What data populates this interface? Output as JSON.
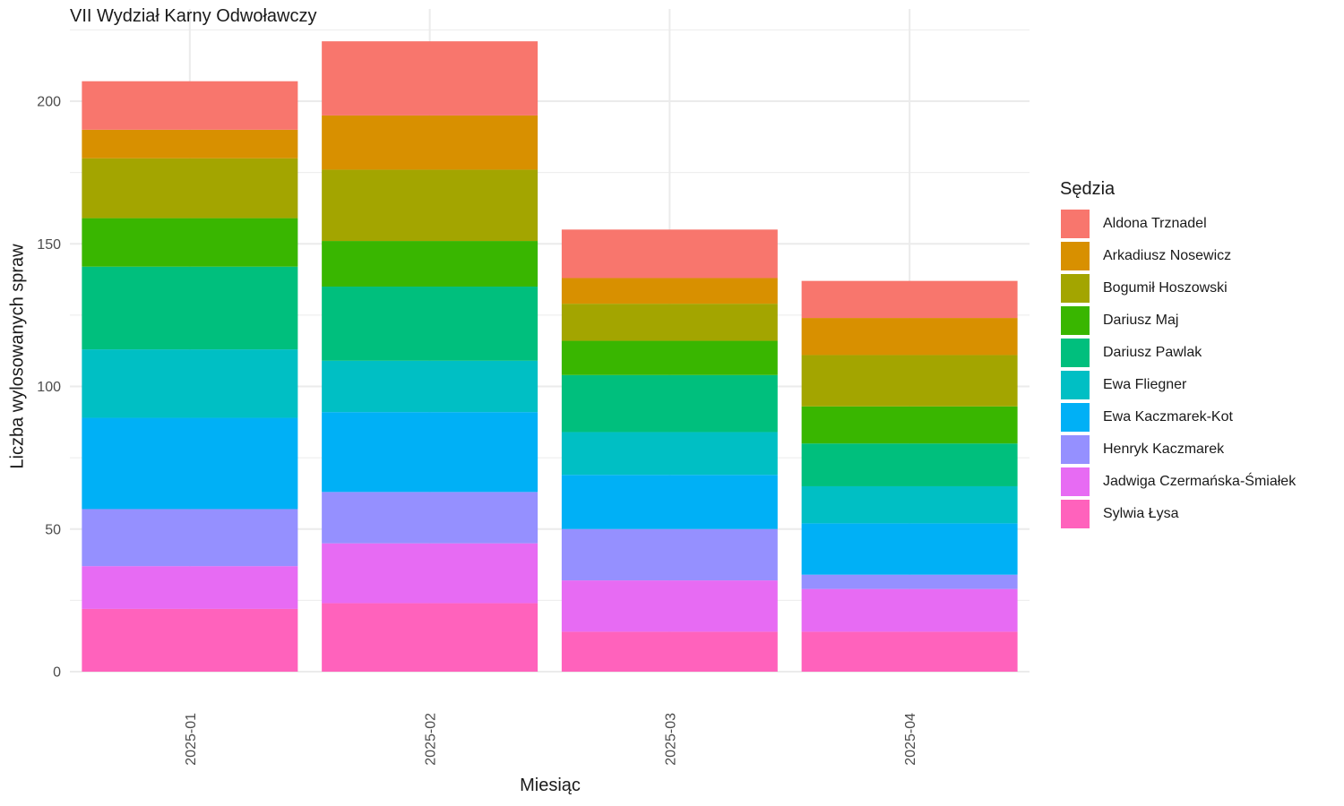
{
  "chart_data": {
    "type": "bar",
    "stacked": true,
    "title": "VII Wydział Karny Odwoławczy",
    "xlabel": "Miesiąc",
    "ylabel": "Liczba wylosowanych spraw",
    "legend_title": "Sędzia",
    "legend_position": "right",
    "grid": true,
    "ylim": [
      0,
      221
    ],
    "yticks": [
      0,
      50,
      100,
      150,
      200
    ],
    "categories": [
      "2025-01",
      "2025-02",
      "2025-03",
      "2025-04"
    ],
    "series": [
      {
        "name": "Aldona Trznadel",
        "color": "#F8766D",
        "values": [
          17,
          26,
          17,
          13
        ]
      },
      {
        "name": "Arkadiusz Nosewicz",
        "color": "#D89000",
        "values": [
          10,
          19,
          9,
          13
        ]
      },
      {
        "name": "Bogumił Hoszowski",
        "color": "#A3A500",
        "values": [
          21,
          25,
          13,
          18
        ]
      },
      {
        "name": "Dariusz Maj",
        "color": "#39B600",
        "values": [
          17,
          16,
          12,
          13
        ]
      },
      {
        "name": "Dariusz Pawlak",
        "color": "#00BF7D",
        "values": [
          29,
          26,
          20,
          15
        ]
      },
      {
        "name": "Ewa Fliegner",
        "color": "#00BFC4",
        "values": [
          24,
          18,
          15,
          13
        ]
      },
      {
        "name": "Ewa Kaczmarek-Kot",
        "color": "#00B0F6",
        "values": [
          32,
          28,
          19,
          18
        ]
      },
      {
        "name": "Henryk Kaczmarek",
        "color": "#9590FF",
        "values": [
          20,
          18,
          18,
          5
        ]
      },
      {
        "name": "Jadwiga Czermańska-Śmiałek",
        "color": "#E76BF3",
        "values": [
          15,
          21,
          18,
          15
        ]
      },
      {
        "name": "Sylwia Łysa",
        "color": "#FF62BC",
        "values": [
          22,
          24,
          14,
          14
        ]
      }
    ]
  }
}
